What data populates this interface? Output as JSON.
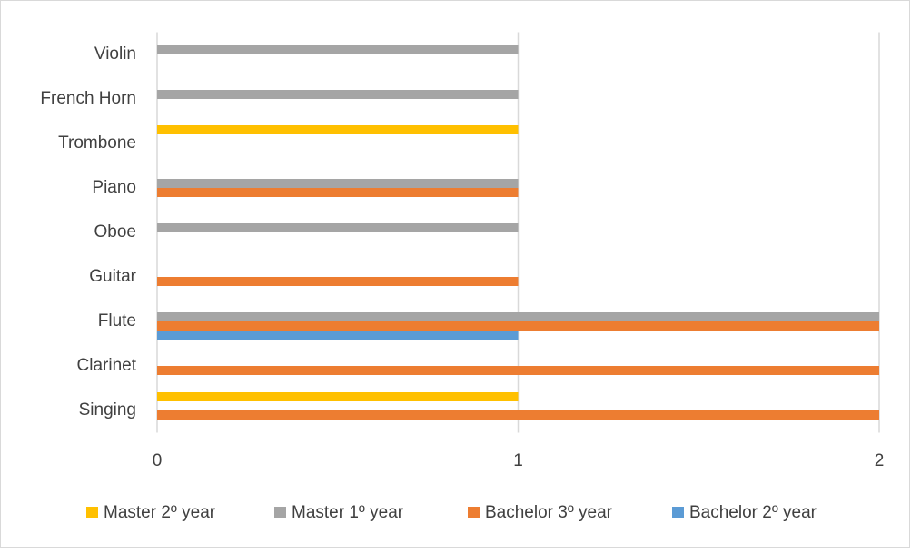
{
  "chart_data": {
    "type": "barh",
    "categories": [
      "Singing",
      "Clarinet",
      "Flute",
      "Guitar",
      "Oboe",
      "Piano",
      "Trombone",
      "French Horn",
      "Violin"
    ],
    "series": [
      {
        "name": "Master 2º year",
        "color": "#ffc000",
        "values": [
          1,
          0,
          0,
          0,
          0,
          0,
          1,
          0,
          0
        ]
      },
      {
        "name": "Master 1º year",
        "color": "#a5a5a5",
        "values": [
          0,
          0,
          2,
          0,
          1,
          1,
          0,
          1,
          1
        ]
      },
      {
        "name": "Bachelor 3º year",
        "color": "#ed7d31",
        "values": [
          2,
          2,
          2,
          1,
          0,
          1,
          0,
          0,
          0
        ]
      },
      {
        "name": "Bachelor 2º year",
        "color": "#5b9bd5",
        "values": [
          0,
          0,
          1,
          0,
          0,
          0,
          0,
          0,
          0
        ]
      }
    ],
    "xlim": [
      0,
      2
    ],
    "xticks": [
      0,
      1,
      2
    ],
    "grid": true,
    "legend": "bottom"
  }
}
